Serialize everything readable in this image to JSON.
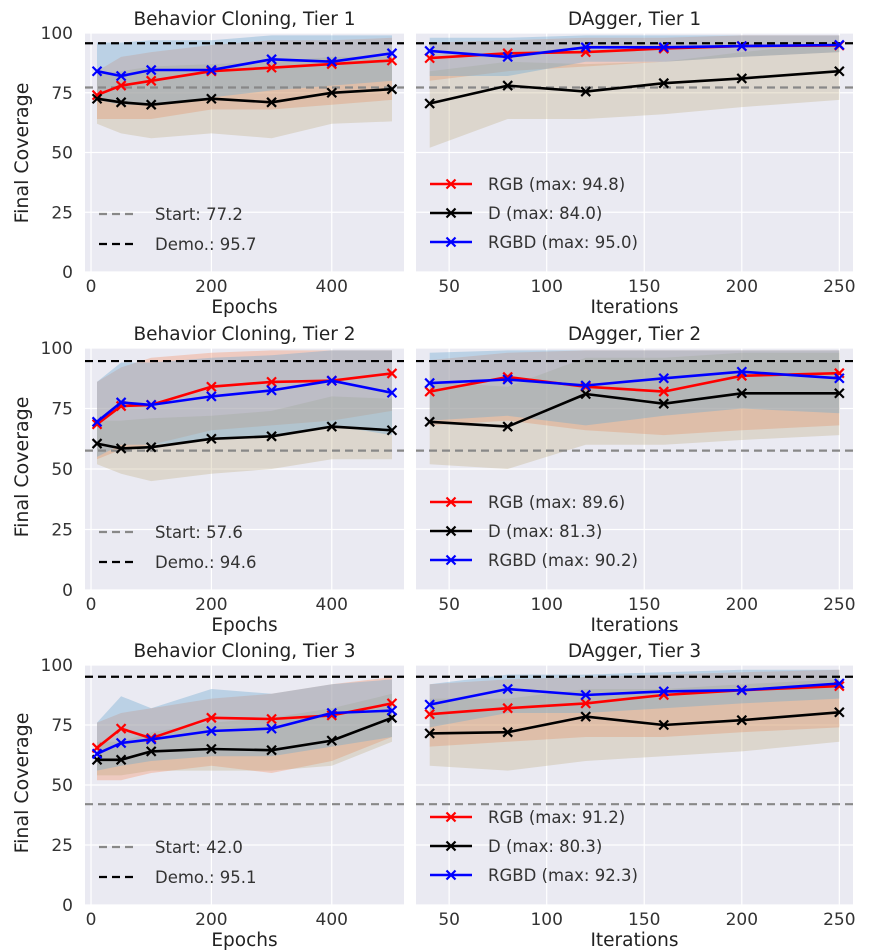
{
  "figure": {
    "ylabel": "Final Coverage"
  },
  "legend_colors": {
    "RGB": "#ff0000",
    "D": "#000000",
    "RGBD": "#0000ff",
    "start": "#888888",
    "demo": "#000000",
    "panel_bg": "#eaeaf2",
    "grid": "#ffffff"
  },
  "chart_data": [
    {
      "type": "line",
      "title": "Behavior Cloning, Tier 1",
      "xlabel": "Epochs",
      "ylabel": "Final Coverage",
      "xlim": [
        -10,
        520
      ],
      "ylim": [
        0,
        100
      ],
      "xticks": [
        0,
        200,
        400
      ],
      "yticks": [
        0,
        25,
        50,
        75,
        100
      ],
      "x": [
        10,
        50,
        100,
        200,
        300,
        400,
        500
      ],
      "series": [
        {
          "name": "RGB",
          "values": [
            74,
            78,
            80,
            84,
            85.5,
            87,
            88.5
          ],
          "lower": [
            64,
            64,
            64,
            68,
            68,
            70,
            72
          ],
          "upper": [
            84,
            90,
            92,
            95,
            97,
            97,
            98
          ]
        },
        {
          "name": "D",
          "values": [
            72.5,
            71,
            70,
            72.5,
            71,
            75,
            76.5
          ],
          "lower": [
            62,
            58,
            56,
            58,
            56,
            62,
            63
          ],
          "upper": [
            83,
            84,
            86,
            87,
            88,
            90,
            90
          ]
        },
        {
          "name": "RGBD",
          "values": [
            84,
            82,
            84.5,
            84.5,
            89,
            88,
            91.5
          ],
          "lower": [
            72,
            70,
            70,
            73,
            76,
            78,
            80
          ],
          "upper": [
            96,
            96,
            97,
            97,
            99,
            99,
            99
          ]
        }
      ],
      "hlines": [
        {
          "name": "Start",
          "value": 77.2,
          "label": "Start: 77.2"
        },
        {
          "name": "Demo.",
          "value": 95.7,
          "label": "Demo.: 95.7"
        }
      ],
      "legend": "lower-left",
      "grid": true
    },
    {
      "type": "line",
      "title": "DAgger, Tier 1",
      "xlabel": "Iterations",
      "ylabel": "",
      "xlim": [
        33,
        257
      ],
      "ylim": [
        0,
        100
      ],
      "xticks": [
        50,
        100,
        150,
        200,
        250
      ],
      "yticks": [
        0,
        25,
        50,
        75,
        100
      ],
      "x": [
        40,
        80,
        120,
        160,
        200,
        250
      ],
      "series": [
        {
          "name": "RGB",
          "legend": "RGB (max: 94.8)",
          "values": [
            89.5,
            91.5,
            92,
            93.5,
            94.5,
            94.8
          ],
          "lower": [
            80,
            84,
            86,
            88,
            90,
            92
          ],
          "upper": [
            96,
            97,
            98,
            98,
            99,
            99
          ]
        },
        {
          "name": "D",
          "legend": "D (max: 84.0)",
          "values": [
            70.5,
            78,
            75.5,
            79,
            81,
            84
          ],
          "lower": [
            52,
            64,
            64,
            66,
            69,
            72
          ],
          "upper": [
            84,
            88,
            87,
            88,
            92,
            96
          ]
        },
        {
          "name": "RGBD",
          "legend": "RGBD (max: 95.0)",
          "values": [
            92.5,
            90,
            94,
            94,
            94.5,
            95
          ],
          "lower": [
            82,
            82,
            88,
            88,
            90,
            92
          ],
          "upper": [
            98,
            98,
            99,
            99,
            99,
            99
          ]
        }
      ],
      "hlines": [
        {
          "name": "Start",
          "value": 77.2
        },
        {
          "name": "Demo.",
          "value": 95.7
        }
      ],
      "legend": "lower-left",
      "grid": true
    },
    {
      "type": "line",
      "title": "Behavior Cloning, Tier 2",
      "xlabel": "Epochs",
      "ylabel": "Final Coverage",
      "xlim": [
        -10,
        520
      ],
      "ylim": [
        0,
        100
      ],
      "xticks": [
        0,
        200,
        400
      ],
      "yticks": [
        0,
        25,
        50,
        75,
        100
      ],
      "x": [
        10,
        50,
        100,
        200,
        300,
        400,
        500
      ],
      "series": [
        {
          "name": "RGB",
          "values": [
            68.5,
            76,
            76.5,
            84,
            86,
            86.5,
            89.5
          ],
          "lower": [
            54,
            58,
            60,
            66,
            68,
            70,
            74
          ],
          "upper": [
            86,
            92,
            96,
            98,
            99,
            99,
            99
          ]
        },
        {
          "name": "D",
          "values": [
            60.5,
            58.5,
            59,
            62.5,
            63.5,
            67.5,
            66
          ],
          "lower": [
            52,
            48,
            45,
            48,
            50,
            54,
            54
          ],
          "upper": [
            70,
            70,
            71,
            72,
            74,
            80,
            79
          ]
        },
        {
          "name": "RGBD",
          "values": [
            69.5,
            77.5,
            76.5,
            80,
            82.5,
            86.5,
            81.5
          ],
          "lower": [
            55,
            60,
            60,
            62,
            64,
            68,
            64
          ],
          "upper": [
            86,
            94,
            94,
            96,
            97,
            99,
            99
          ]
        }
      ],
      "hlines": [
        {
          "name": "Start",
          "value": 57.6,
          "label": "Start: 57.6"
        },
        {
          "name": "Demo.",
          "value": 94.6,
          "label": "Demo.: 94.6"
        }
      ],
      "legend": "lower-left",
      "grid": true
    },
    {
      "type": "line",
      "title": "DAgger, Tier 2",
      "xlabel": "Iterations",
      "ylabel": "",
      "xlim": [
        33,
        257
      ],
      "ylim": [
        0,
        100
      ],
      "xticks": [
        50,
        100,
        150,
        200,
        250
      ],
      "yticks": [
        0,
        25,
        50,
        75,
        100
      ],
      "x": [
        40,
        80,
        120,
        160,
        200,
        250
      ],
      "series": [
        {
          "name": "RGB",
          "legend": "RGB (max: 89.6)",
          "values": [
            82,
            88,
            84,
            82,
            88.5,
            89.6
          ],
          "lower": [
            68,
            70,
            66,
            64,
            66,
            68
          ],
          "upper": [
            95,
            98,
            99,
            99,
            99,
            99
          ]
        },
        {
          "name": "D",
          "legend": "D (max: 81.3)",
          "values": [
            69.5,
            67.5,
            81,
            77,
            81.3,
            81.3
          ],
          "lower": [
            52,
            50,
            60,
            60,
            62,
            64
          ],
          "upper": [
            86,
            84,
            96,
            96,
            98,
            98
          ]
        },
        {
          "name": "RGBD",
          "legend": "RGBD (max: 90.2)",
          "values": [
            85.5,
            87,
            84.5,
            87.5,
            90.2,
            87.5
          ],
          "lower": [
            70,
            72,
            68,
            72,
            75,
            73
          ],
          "upper": [
            98,
            99,
            99,
            99,
            99,
            99
          ]
        }
      ],
      "hlines": [
        {
          "name": "Start",
          "value": 57.6
        },
        {
          "name": "Demo.",
          "value": 94.6
        }
      ],
      "legend": "lower-left",
      "grid": true
    },
    {
      "type": "line",
      "title": "Behavior Cloning, Tier 3",
      "xlabel": "Epochs",
      "ylabel": "Final Coverage",
      "xlim": [
        -10,
        520
      ],
      "ylim": [
        0,
        100
      ],
      "xticks": [
        0,
        200,
        400
      ],
      "yticks": [
        0,
        25,
        50,
        75,
        100
      ],
      "x": [
        10,
        50,
        100,
        200,
        300,
        400,
        500
      ],
      "series": [
        {
          "name": "RGB",
          "values": [
            65.5,
            73.5,
            69.5,
            78,
            77.5,
            79,
            84
          ],
          "lower": [
            52,
            52,
            55,
            58,
            55,
            60,
            70
          ],
          "upper": [
            76,
            80,
            82,
            86,
            88,
            92,
            95
          ]
        },
        {
          "name": "D",
          "values": [
            60.5,
            60.5,
            64,
            65,
            64.5,
            68.5,
            78
          ],
          "lower": [
            54,
            54,
            56,
            56,
            56,
            58,
            68
          ],
          "upper": [
            68,
            68,
            72,
            76,
            78,
            82,
            88
          ]
        },
        {
          "name": "RGBD",
          "values": [
            63,
            67.5,
            69,
            72.5,
            73.5,
            80,
            81
          ],
          "lower": [
            56,
            58,
            60,
            62,
            62,
            66,
            70
          ],
          "upper": [
            76,
            87,
            82,
            90,
            88,
            92,
            94
          ]
        }
      ],
      "hlines": [
        {
          "name": "Start",
          "value": 42.0,
          "label": "Start: 42.0"
        },
        {
          "name": "Demo.",
          "value": 95.1,
          "label": "Demo.: 95.1"
        }
      ],
      "legend": "lower-left",
      "grid": true
    },
    {
      "type": "line",
      "title": "DAgger, Tier 3",
      "xlabel": "Iterations",
      "ylabel": "",
      "xlim": [
        33,
        257
      ],
      "ylim": [
        0,
        100
      ],
      "xticks": [
        50,
        100,
        150,
        200,
        250
      ],
      "yticks": [
        0,
        25,
        50,
        75,
        100
      ],
      "x": [
        40,
        80,
        120,
        160,
        200,
        250
      ],
      "series": [
        {
          "name": "RGB",
          "legend": "RGB (max: 91.2)",
          "values": [
            79.5,
            82,
            84,
            87.5,
            89.5,
            91.2
          ],
          "lower": [
            66,
            68,
            70,
            70,
            72,
            74
          ],
          "upper": [
            92,
            94,
            95,
            96,
            97,
            98
          ]
        },
        {
          "name": "D",
          "legend": "D (max: 80.3)",
          "values": [
            71.5,
            72,
            78.5,
            75,
            77,
            80.3
          ],
          "lower": [
            58,
            56,
            60,
            62,
            64,
            68
          ],
          "upper": [
            86,
            86,
            90,
            90,
            92,
            94
          ]
        },
        {
          "name": "RGBD",
          "legend": "RGBD (max: 92.3)",
          "values": [
            83.5,
            90,
            87.5,
            89,
            89.5,
            92.3
          ],
          "lower": [
            74,
            80,
            80,
            82,
            84,
            86
          ],
          "upper": [
            92,
            96,
            96,
            97,
            98,
            98
          ]
        }
      ],
      "hlines": [
        {
          "name": "Start",
          "value": 42.0
        },
        {
          "name": "Demo.",
          "value": 95.1
        }
      ],
      "legend": "lower-left",
      "grid": true
    }
  ]
}
